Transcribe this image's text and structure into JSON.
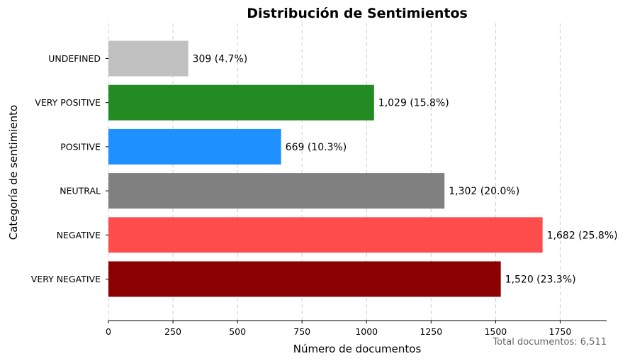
{
  "chart_data": {
    "type": "bar",
    "orientation": "horizontal",
    "title": "Distribución de Sentimientos",
    "xlabel": "Número de documentos",
    "ylabel": "Categoría de sentimiento",
    "xlim": [
      0,
      1930
    ],
    "xticks": [
      0,
      250,
      500,
      750,
      1000,
      1250,
      1500,
      1750
    ],
    "grid": "x-dashed",
    "categories": [
      "VERY NEGATIVE",
      "NEGATIVE",
      "NEUTRAL",
      "POSITIVE",
      "VERY POSITIVE",
      "UNDEFINED"
    ],
    "values": [
      1520,
      1682,
      1302,
      669,
      1029,
      309
    ],
    "labels": [
      "1,520 (23.3%)",
      "1,682 (25.8%)",
      "1,302 (20.0%)",
      "669 (10.3%)",
      "1,029 (15.8%)",
      "309 (4.7%)"
    ],
    "colors": [
      "#8b0000",
      "#ff4c4c",
      "#808080",
      "#1e90ff",
      "#228b22",
      "#c0c0c0"
    ],
    "footer_text": "Total documentos: 6,511"
  }
}
